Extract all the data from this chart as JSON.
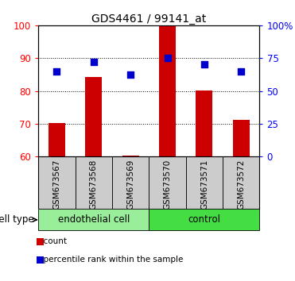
{
  "title": "GDS4461 / 99141_at",
  "samples": [
    "GSM673567",
    "GSM673568",
    "GSM673569",
    "GSM673570",
    "GSM673571",
    "GSM673572"
  ],
  "bar_values": [
    70.3,
    84.2,
    60.2,
    99.8,
    80.2,
    71.2
  ],
  "percentile_values": [
    65.0,
    72.0,
    62.5,
    75.0,
    70.0,
    65.0
  ],
  "bar_color": "#cc0000",
  "dot_color": "#0000cc",
  "ylim_left": [
    60,
    100
  ],
  "ylim_right": [
    0,
    100
  ],
  "left_yticks": [
    60,
    70,
    80,
    90,
    100
  ],
  "right_yticks": [
    0,
    25,
    50,
    75,
    100
  ],
  "right_yticklabels": [
    "0",
    "25",
    "50",
    "75",
    "100%"
  ],
  "cell_groups": [
    {
      "label": "endothelial cell",
      "indices": [
        0,
        1,
        2
      ],
      "color": "#99ee99"
    },
    {
      "label": "control",
      "indices": [
        3,
        4,
        5
      ],
      "color": "#44dd44"
    }
  ],
  "cell_type_label": "cell type",
  "legend_items": [
    {
      "color": "#cc0000",
      "marker": "s",
      "label": "count"
    },
    {
      "color": "#0000cc",
      "marker": "s",
      "label": "percentile rank within the sample"
    }
  ],
  "background_color": "#ffffff",
  "box_color": "#cccccc",
  "bar_width": 0.45
}
